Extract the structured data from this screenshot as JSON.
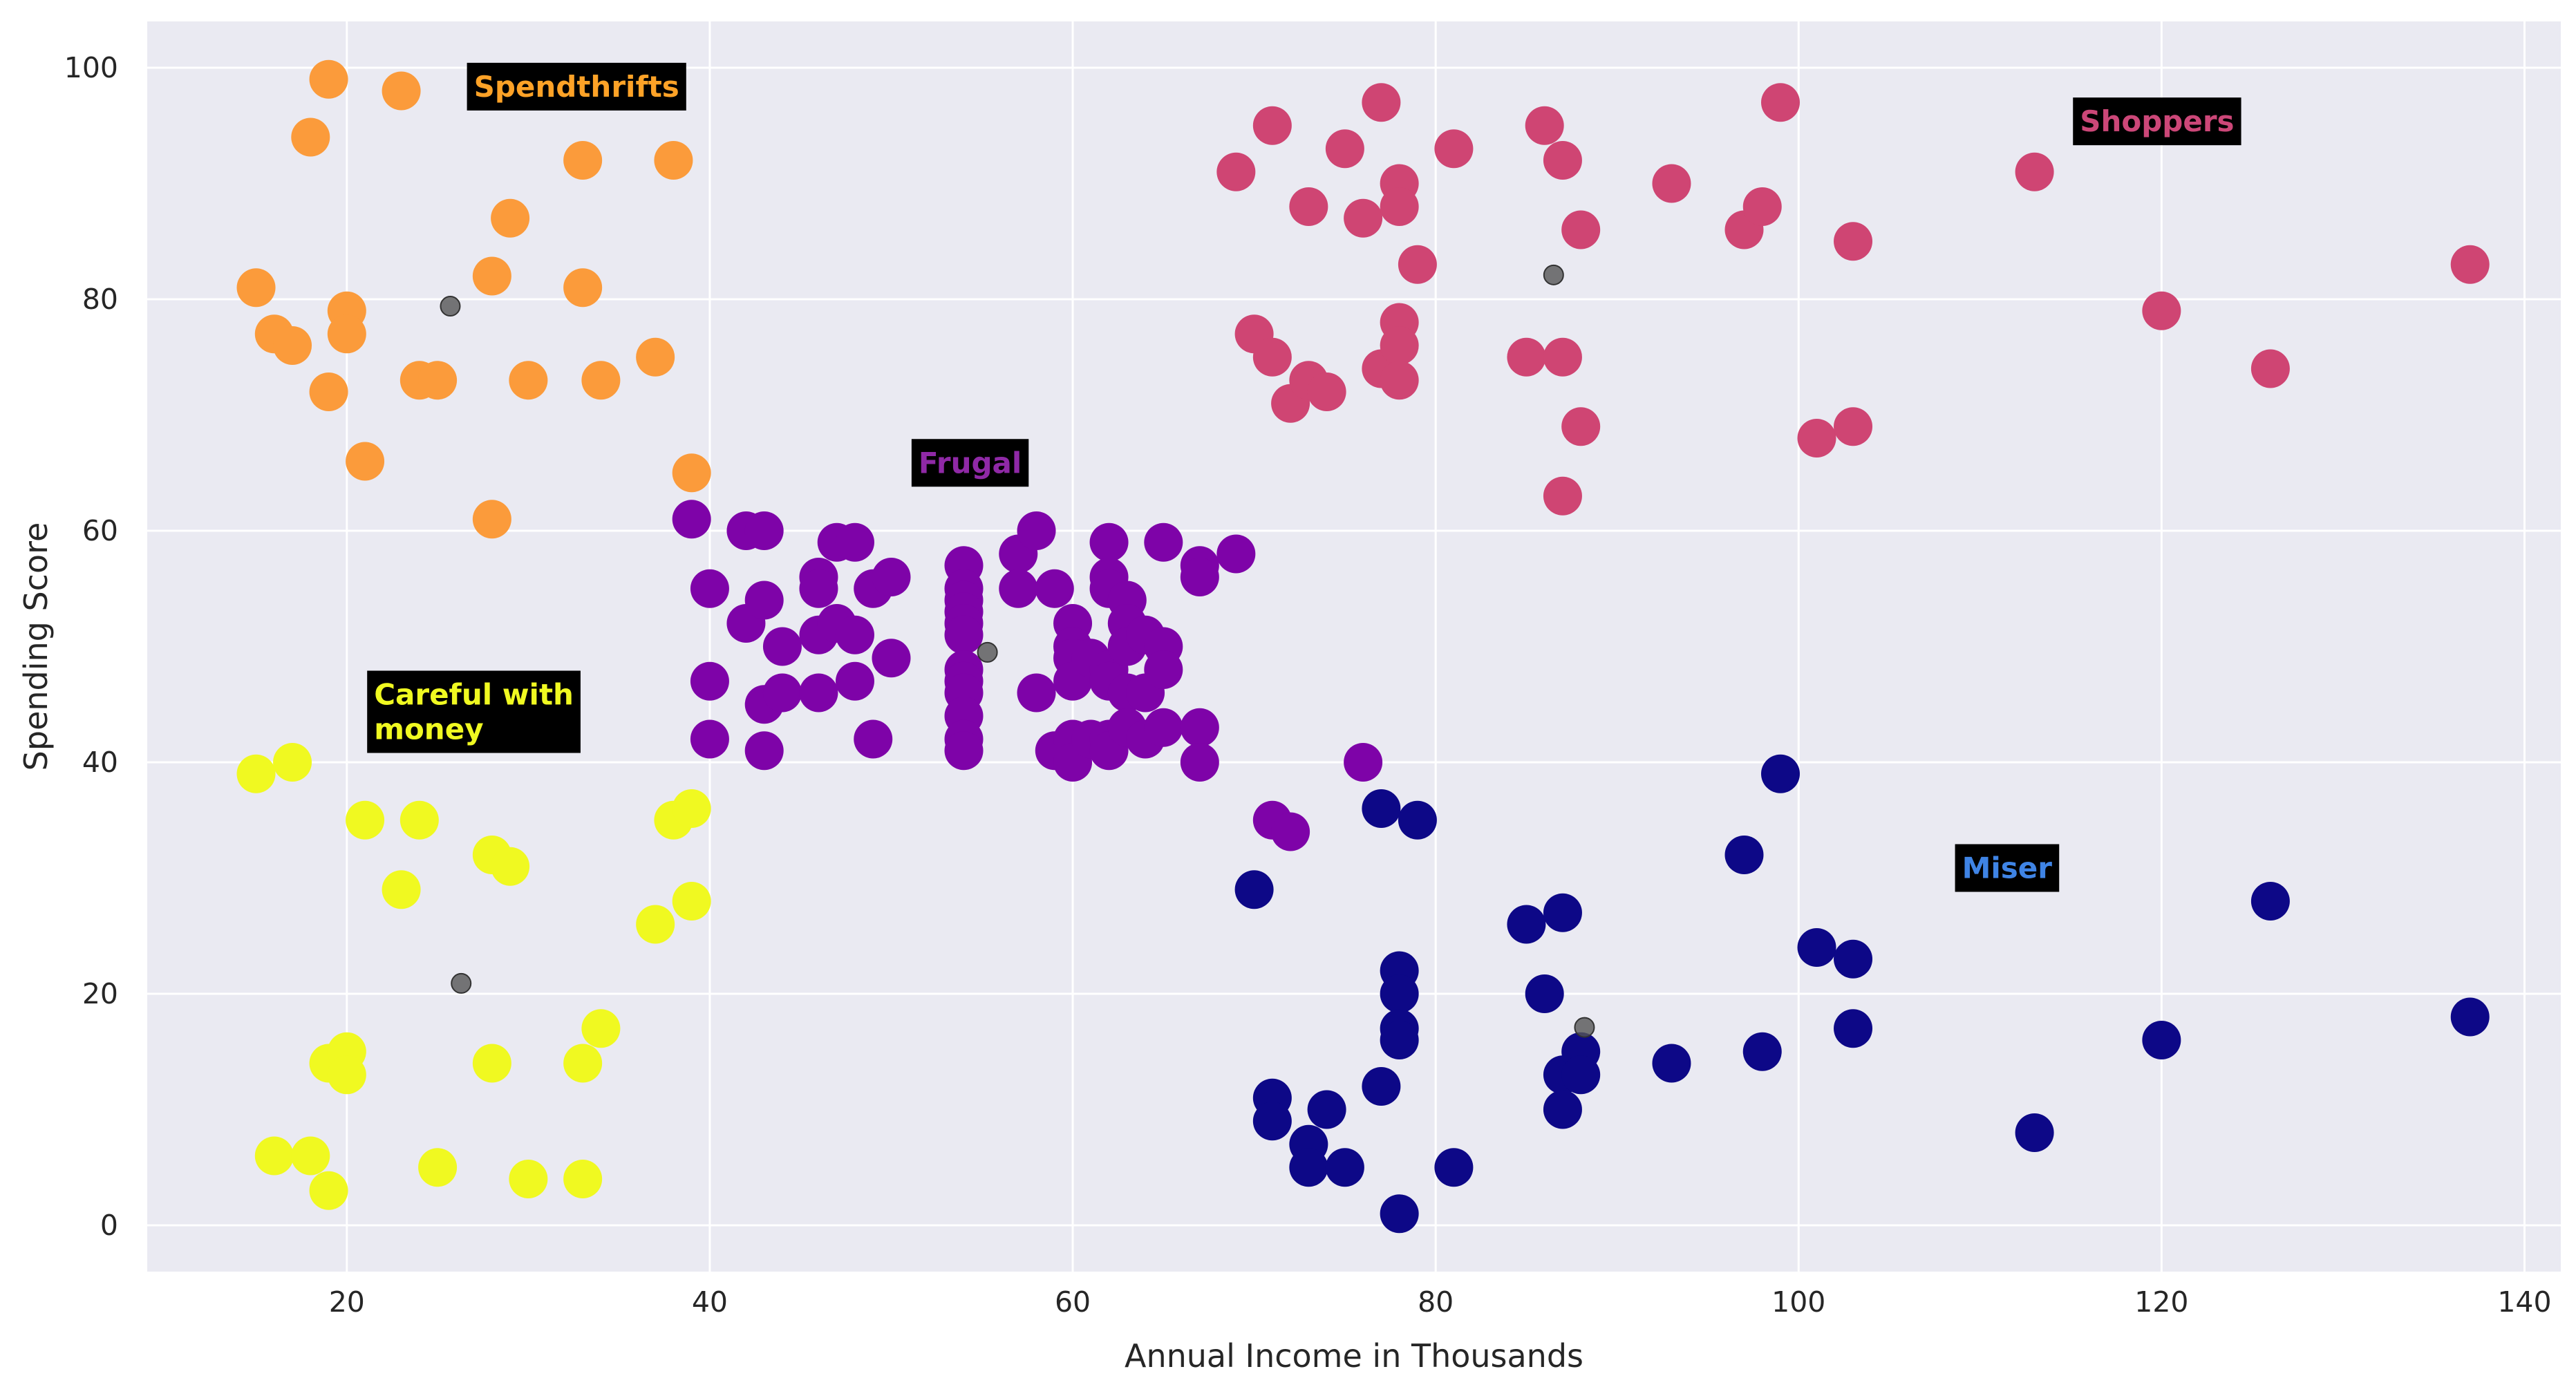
{
  "chart_data": {
    "type": "scatter",
    "xlabel": "Annual Income in Thousands",
    "ylabel": "Spending Score",
    "xlim": [
      9,
      142
    ],
    "ylim": [
      -4,
      104
    ],
    "xticks": [
      20,
      40,
      60,
      80,
      100,
      120,
      140
    ],
    "yticks": [
      0,
      20,
      40,
      60,
      80,
      100
    ],
    "grid": true,
    "background": "#eaeaf2",
    "grid_color": "#ffffff",
    "series": [
      {
        "color": "#fb9b3b",
        "points": [
          [
            15,
            81
          ],
          [
            16,
            77
          ],
          [
            17,
            76
          ],
          [
            18,
            94
          ],
          [
            19,
            99
          ],
          [
            19,
            72
          ],
          [
            20,
            79
          ],
          [
            20,
            77
          ],
          [
            21,
            66
          ],
          [
            23,
            98
          ],
          [
            24,
            73
          ],
          [
            25,
            73
          ],
          [
            28,
            82
          ],
          [
            28,
            61
          ],
          [
            29,
            87
          ],
          [
            30,
            73
          ],
          [
            33,
            92
          ],
          [
            33,
            81
          ],
          [
            34,
            73
          ],
          [
            37,
            75
          ],
          [
            38,
            92
          ],
          [
            39,
            65
          ]
        ]
      },
      {
        "color": "#cf4573",
        "points": [
          [
            69,
            91
          ],
          [
            70,
            77
          ],
          [
            71,
            95
          ],
          [
            71,
            75
          ],
          [
            72,
            71
          ],
          [
            73,
            88
          ],
          [
            73,
            73
          ],
          [
            74,
            72
          ],
          [
            75,
            93
          ],
          [
            76,
            87
          ],
          [
            77,
            97
          ],
          [
            77,
            74
          ],
          [
            78,
            90
          ],
          [
            78,
            88
          ],
          [
            78,
            78
          ],
          [
            78,
            76
          ],
          [
            78,
            73
          ],
          [
            79,
            83
          ],
          [
            81,
            93
          ],
          [
            85,
            75
          ],
          [
            86,
            95
          ],
          [
            87,
            92
          ],
          [
            87,
            75
          ],
          [
            87,
            63
          ],
          [
            88,
            86
          ],
          [
            88,
            69
          ],
          [
            93,
            90
          ],
          [
            97,
            86
          ],
          [
            98,
            88
          ],
          [
            99,
            97
          ],
          [
            101,
            68
          ],
          [
            103,
            85
          ],
          [
            103,
            69
          ],
          [
            113,
            91
          ],
          [
            120,
            79
          ],
          [
            126,
            74
          ],
          [
            137,
            83
          ]
        ]
      },
      {
        "color": "#7e03a8",
        "points": [
          [
            39,
            61
          ],
          [
            40,
            55
          ],
          [
            40,
            47
          ],
          [
            40,
            42
          ],
          [
            42,
            60
          ],
          [
            42,
            52
          ],
          [
            43,
            60
          ],
          [
            43,
            54
          ],
          [
            43,
            45
          ],
          [
            43,
            41
          ],
          [
            44,
            50
          ],
          [
            44,
            46
          ],
          [
            46,
            56
          ],
          [
            46,
            55
          ],
          [
            46,
            51
          ],
          [
            46,
            46
          ],
          [
            47,
            59
          ],
          [
            47,
            52
          ],
          [
            48,
            59
          ],
          [
            48,
            51
          ],
          [
            48,
            47
          ],
          [
            49,
            55
          ],
          [
            49,
            42
          ],
          [
            50,
            56
          ],
          [
            50,
            49
          ],
          [
            54,
            57
          ],
          [
            54,
            55
          ],
          [
            54,
            54
          ],
          [
            54,
            53
          ],
          [
            54,
            52
          ],
          [
            54,
            51
          ],
          [
            54,
            48
          ],
          [
            54,
            47
          ],
          [
            54,
            46
          ],
          [
            54,
            44
          ],
          [
            54,
            42
          ],
          [
            54,
            41
          ],
          [
            57,
            58
          ],
          [
            57,
            55
          ],
          [
            58,
            60
          ],
          [
            58,
            46
          ],
          [
            59,
            55
          ],
          [
            59,
            41
          ],
          [
            60,
            52
          ],
          [
            60,
            50
          ],
          [
            60,
            49
          ],
          [
            60,
            47
          ],
          [
            60,
            42
          ],
          [
            60,
            40
          ],
          [
            61,
            49
          ],
          [
            61,
            42
          ],
          [
            62,
            59
          ],
          [
            62,
            56
          ],
          [
            62,
            55
          ],
          [
            62,
            48
          ],
          [
            62,
            47
          ],
          [
            62,
            42
          ],
          [
            62,
            41
          ],
          [
            63,
            54
          ],
          [
            63,
            52
          ],
          [
            63,
            50
          ],
          [
            63,
            46
          ],
          [
            63,
            43
          ],
          [
            64,
            51
          ],
          [
            64,
            46
          ],
          [
            64,
            42
          ],
          [
            65,
            59
          ],
          [
            65,
            50
          ],
          [
            65,
            48
          ],
          [
            65,
            43
          ],
          [
            67,
            57
          ],
          [
            67,
            56
          ],
          [
            67,
            43
          ],
          [
            67,
            40
          ],
          [
            69,
            58
          ],
          [
            71,
            35
          ],
          [
            72,
            34
          ],
          [
            76,
            40
          ]
        ]
      },
      {
        "color": "#f0f921",
        "points": [
          [
            15,
            39
          ],
          [
            16,
            6
          ],
          [
            17,
            40
          ],
          [
            18,
            6
          ],
          [
            19,
            14
          ],
          [
            19,
            3
          ],
          [
            20,
            15
          ],
          [
            20,
            13
          ],
          [
            21,
            35
          ],
          [
            23,
            29
          ],
          [
            24,
            35
          ],
          [
            25,
            5
          ],
          [
            28,
            32
          ],
          [
            28,
            14
          ],
          [
            29,
            31
          ],
          [
            30,
            4
          ],
          [
            33,
            14
          ],
          [
            33,
            4
          ],
          [
            34,
            17
          ],
          [
            37,
            26
          ],
          [
            38,
            35
          ],
          [
            39,
            36
          ],
          [
            39,
            28
          ]
        ]
      },
      {
        "color": "#0d0887",
        "points": [
          [
            70,
            29
          ],
          [
            71,
            11
          ],
          [
            71,
            9
          ],
          [
            73,
            7
          ],
          [
            73,
            5
          ],
          [
            74,
            10
          ],
          [
            75,
            5
          ],
          [
            77,
            36
          ],
          [
            77,
            12
          ],
          [
            78,
            22
          ],
          [
            78,
            20
          ],
          [
            78,
            17
          ],
          [
            78,
            16
          ],
          [
            78,
            1
          ],
          [
            79,
            35
          ],
          [
            81,
            5
          ],
          [
            85,
            26
          ],
          [
            86,
            20
          ],
          [
            87,
            27
          ],
          [
            87,
            13
          ],
          [
            87,
            10
          ],
          [
            88,
            15
          ],
          [
            88,
            13
          ],
          [
            93,
            14
          ],
          [
            97,
            32
          ],
          [
            98,
            15
          ],
          [
            99,
            39
          ],
          [
            101,
            24
          ],
          [
            103,
            23
          ],
          [
            103,
            17
          ],
          [
            113,
            8
          ],
          [
            120,
            16
          ],
          [
            126,
            28
          ],
          [
            137,
            18
          ]
        ]
      }
    ],
    "centroids": [
      [
        25.7,
        79.4
      ],
      [
        86.5,
        82.1
      ],
      [
        55.3,
        49.5
      ],
      [
        26.3,
        20.9
      ],
      [
        88.2,
        17.1
      ]
    ],
    "centroid_color": "#555555",
    "annotations": [
      {
        "text": "Spendthrifts",
        "x": 27,
        "y": 97.5,
        "color": "#fda227",
        "bg": "#000000"
      },
      {
        "text": "Shoppers",
        "x": 115.5,
        "y": 94.5,
        "color": "#cc4778",
        "bg": "#000000"
      },
      {
        "text": "Frugal",
        "x": 51.5,
        "y": 65,
        "color": "#8f29a6",
        "bg": "#000000"
      },
      {
        "text": "Careful with\nmoney",
        "x": 21.5,
        "y": 42,
        "color": "#f0f921",
        "bg": "#000000"
      },
      {
        "text": "Miser",
        "x": 109,
        "y": 30,
        "color": "#3f84e5",
        "bg": "#000000"
      }
    ]
  }
}
